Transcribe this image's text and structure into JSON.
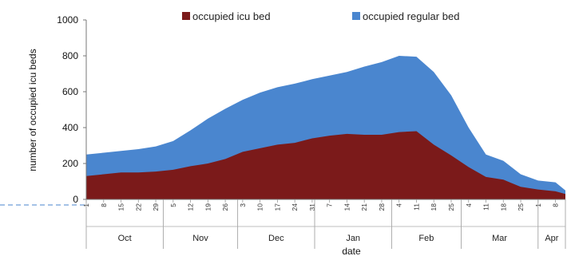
{
  "chart_data": {
    "type": "area",
    "stacked": true,
    "title": "",
    "xlabel": "date",
    "ylabel": "number of occupied icu beds",
    "ylim": [
      0,
      1000
    ],
    "yticks": [
      0,
      200,
      400,
      600,
      800,
      1000
    ],
    "legend_position": "top",
    "grid": false,
    "x_start": "2020-10-01",
    "x_end": "2021-04-12",
    "x_tick_labels": [
      "1",
      "8",
      "15",
      "22",
      "29",
      "5",
      "12",
      "19",
      "26",
      "3",
      "10",
      "17",
      "24",
      "31",
      "7",
      "14",
      "21",
      "28",
      "4",
      "11",
      "18",
      "25",
      "4",
      "11",
      "18",
      "25",
      "1",
      "8"
    ],
    "months": [
      "Oct",
      "Nov",
      "Dec",
      "Jan",
      "Feb",
      "Mar",
      "Apr"
    ],
    "dates": [
      "2020-10-01",
      "2020-10-08",
      "2020-10-15",
      "2020-10-22",
      "2020-10-29",
      "2020-11-05",
      "2020-11-12",
      "2020-11-19",
      "2020-11-26",
      "2020-12-03",
      "2020-12-10",
      "2020-12-17",
      "2020-12-24",
      "2020-12-31",
      "2021-01-07",
      "2021-01-14",
      "2021-01-21",
      "2021-01-28",
      "2021-02-04",
      "2021-02-11",
      "2021-02-18",
      "2021-02-25",
      "2021-03-04",
      "2021-03-11",
      "2021-03-18",
      "2021-03-25",
      "2021-04-01",
      "2021-04-08",
      "2021-04-12"
    ],
    "series": [
      {
        "name": "occupied icu bed",
        "color": "#7b1a1a",
        "values": [
          130,
          140,
          150,
          150,
          155,
          165,
          185,
          200,
          225,
          265,
          285,
          305,
          315,
          340,
          355,
          365,
          360,
          360,
          375,
          380,
          305,
          245,
          180,
          125,
          110,
          70,
          55,
          45,
          30
        ]
      },
      {
        "name": "occupied regular bed",
        "color": "#4a86cf",
        "values": [
          120,
          120,
          120,
          130,
          140,
          160,
          200,
          250,
          280,
          290,
          310,
          320,
          330,
          330,
          335,
          345,
          380,
          405,
          425,
          415,
          405,
          335,
          220,
          125,
          105,
          70,
          50,
          50,
          20
        ]
      }
    ]
  }
}
